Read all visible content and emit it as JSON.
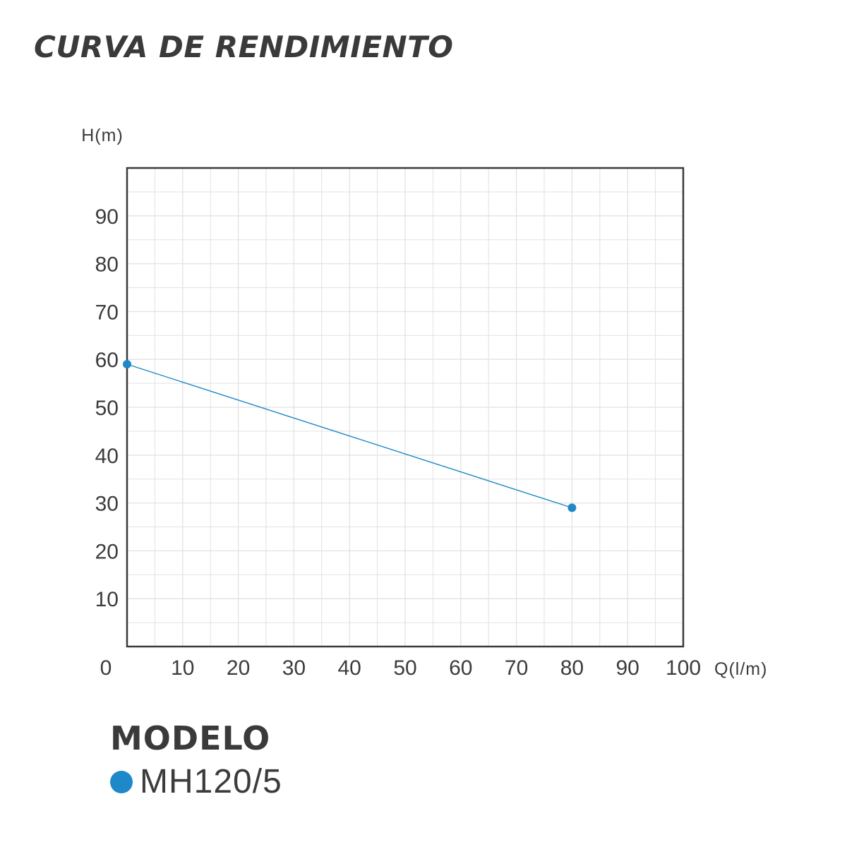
{
  "title": "CURVA DE RENDIMIENTO",
  "colors": {
    "series": "#1e88c8",
    "frame": "#3a3a3a",
    "grid": "#e2e2e2",
    "text": "#3c3c3c"
  },
  "chart_data": {
    "type": "line",
    "xlabel": "Q(l/m)",
    "ylabel": "H(m)",
    "xlim": [
      0,
      100
    ],
    "ylim": [
      0,
      100
    ],
    "x_ticks": [
      0,
      10,
      20,
      30,
      40,
      50,
      60,
      70,
      80,
      90,
      100
    ],
    "y_ticks": [
      10,
      20,
      30,
      40,
      50,
      60,
      70,
      80,
      90
    ],
    "grid": true,
    "legend_title": "MODELO",
    "legend_position": "bottom-left",
    "series": [
      {
        "name": "MH120/5",
        "color": "#1e88c8",
        "points": [
          {
            "x": 0,
            "y": 59
          },
          {
            "x": 80,
            "y": 29
          }
        ]
      }
    ]
  }
}
